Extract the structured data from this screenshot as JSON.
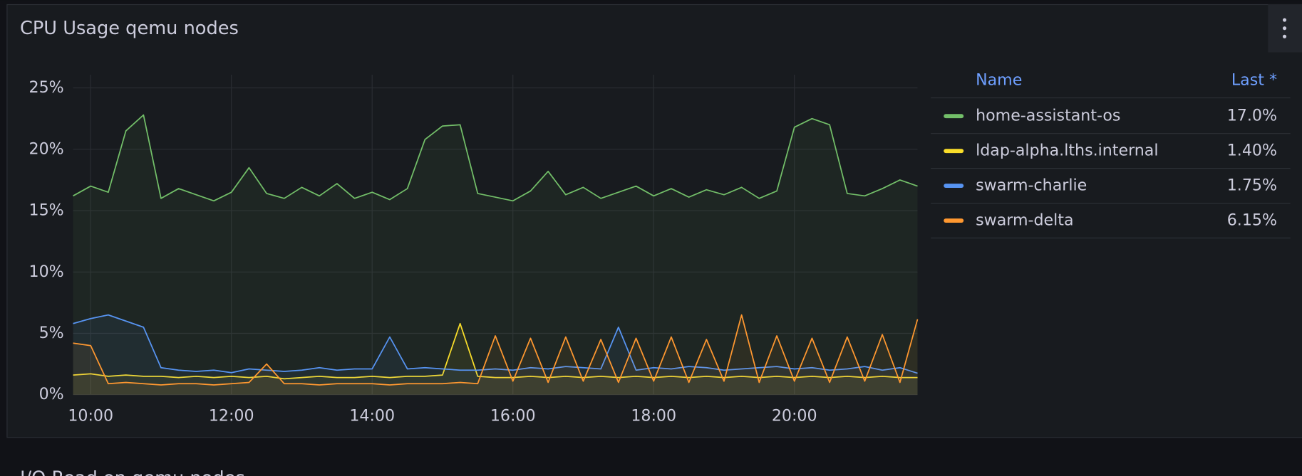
{
  "chart_data": {
    "type": "line",
    "title": "CPU Usage qemu nodes",
    "x": [
      "09:45",
      "10:00",
      "10:15",
      "10:30",
      "10:45",
      "11:00",
      "11:15",
      "11:30",
      "11:45",
      "12:00",
      "12:15",
      "12:30",
      "12:45",
      "13:00",
      "13:15",
      "13:30",
      "13:45",
      "14:00",
      "14:15",
      "14:30",
      "14:45",
      "15:00",
      "15:15",
      "15:30",
      "15:45",
      "16:00",
      "16:15",
      "16:30",
      "16:45",
      "17:00",
      "17:15",
      "17:30",
      "17:45",
      "18:00",
      "18:15",
      "18:30",
      "18:45",
      "19:00",
      "19:15",
      "19:30",
      "19:45",
      "20:00",
      "20:15",
      "20:30",
      "20:45",
      "21:00",
      "21:15",
      "21:30",
      "21:45"
    ],
    "xlim": [
      "09:45",
      "21:45"
    ],
    "xticks": [
      "10:00",
      "12:00",
      "14:00",
      "16:00",
      "18:00",
      "20:00"
    ],
    "ylim": [
      0,
      25
    ],
    "yticks": [
      {
        "value": 0,
        "label": "0%"
      },
      {
        "value": 5,
        "label": "5%"
      },
      {
        "value": 10,
        "label": "10%"
      },
      {
        "value": 15,
        "label": "15%"
      },
      {
        "value": 20,
        "label": "20%"
      },
      {
        "value": 25,
        "label": "25%"
      }
    ],
    "grid": true,
    "legend_columns": [
      "Name",
      "Last *"
    ],
    "series": [
      {
        "name": "home-assistant-os",
        "color": "#73bf69",
        "last": 17.0,
        "last_label": "17.0%",
        "values": [
          16.2,
          17.0,
          16.5,
          21.5,
          22.8,
          16.0,
          16.8,
          16.3,
          15.8,
          16.5,
          18.5,
          16.4,
          16.0,
          16.9,
          16.2,
          17.2,
          16.0,
          16.5,
          15.9,
          16.8,
          20.8,
          21.9,
          22.0,
          16.4,
          16.1,
          15.8,
          16.6,
          18.2,
          16.3,
          16.9,
          16.0,
          16.5,
          17.0,
          16.2,
          16.8,
          16.1,
          16.7,
          16.3,
          16.9,
          16.0,
          16.6,
          21.8,
          22.5,
          22.0,
          16.4,
          16.2,
          16.8,
          17.5,
          17.0
        ]
      },
      {
        "name": "ldap-alpha.lths.internal",
        "color": "#fade2a",
        "last": 1.4,
        "last_label": "1.40%",
        "values": [
          1.6,
          1.7,
          1.5,
          1.6,
          1.5,
          1.5,
          1.4,
          1.5,
          1.4,
          1.5,
          1.4,
          1.5,
          1.3,
          1.4,
          1.5,
          1.4,
          1.4,
          1.5,
          1.4,
          1.5,
          1.5,
          1.6,
          5.8,
          1.5,
          1.4,
          1.4,
          1.5,
          1.4,
          1.5,
          1.4,
          1.5,
          1.4,
          1.5,
          1.4,
          1.5,
          1.4,
          1.5,
          1.4,
          1.5,
          1.4,
          1.5,
          1.4,
          1.5,
          1.4,
          1.5,
          1.4,
          1.5,
          1.4,
          1.4
        ]
      },
      {
        "name": "swarm-charlie",
        "color": "#5794f2",
        "last": 1.75,
        "last_label": "1.75%",
        "values": [
          5.8,
          6.2,
          6.5,
          6.0,
          5.5,
          2.2,
          2.0,
          1.9,
          2.0,
          1.8,
          2.1,
          2.0,
          1.9,
          2.0,
          2.2,
          2.0,
          2.1,
          2.1,
          4.7,
          2.1,
          2.2,
          2.1,
          2.0,
          2.0,
          2.1,
          2.0,
          2.2,
          2.1,
          2.3,
          2.2,
          2.1,
          5.5,
          2.0,
          2.2,
          2.1,
          2.3,
          2.2,
          2.0,
          2.1,
          2.2,
          2.3,
          2.1,
          2.2,
          2.0,
          2.1,
          2.3,
          2.0,
          2.2,
          1.75
        ]
      },
      {
        "name": "swarm-delta",
        "color": "#ff9830",
        "last": 6.15,
        "last_label": "6.15%",
        "values": [
          4.2,
          4.0,
          0.9,
          1.0,
          0.9,
          0.8,
          0.9,
          0.9,
          0.8,
          0.9,
          1.0,
          2.5,
          0.9,
          0.9,
          0.8,
          0.9,
          0.9,
          0.9,
          0.8,
          0.9,
          0.9,
          0.9,
          1.0,
          0.9,
          4.8,
          1.1,
          4.6,
          1.0,
          4.7,
          1.1,
          4.5,
          1.0,
          4.6,
          1.1,
          4.7,
          1.0,
          4.5,
          1.1,
          6.5,
          1.0,
          4.8,
          1.1,
          4.6,
          1.0,
          4.7,
          1.1,
          4.9,
          1.0,
          6.15
        ]
      }
    ]
  },
  "next_panel": {
    "title": "I/O Read on qemu nodes"
  }
}
